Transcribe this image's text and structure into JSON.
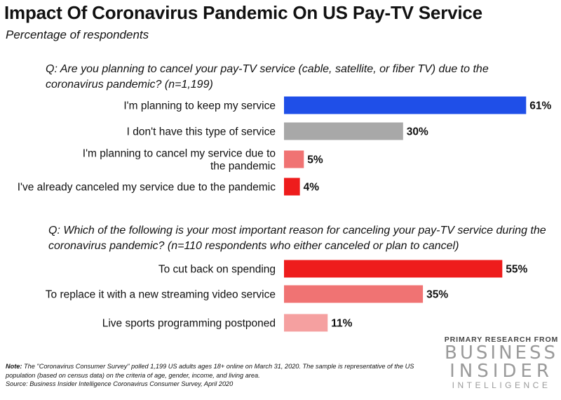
{
  "chart_data": {
    "title": "Impact Of Coronavirus Pandemic On US Pay-TV Service",
    "subtitle": "Percentage of respondents",
    "type": "bar",
    "orientation": "horizontal",
    "panels": [
      {
        "question": "Q: Are you planning to cancel your pay-TV service (cable, satellite, or fiber TV) due to the coronavirus pandemic? (n=1,199)",
        "categories": [
          "I'm planning to keep my service",
          "I don't have this type of service",
          "I'm planning to cancel my service due to the pandemic",
          "I've already canceled my service due to the pandemic"
        ],
        "values": [
          61,
          30,
          5,
          4
        ],
        "value_labels": [
          "61%",
          "30%",
          "5%",
          "4%"
        ],
        "colors": [
          "#1f4fe8",
          "#a8a8a8",
          "#f07373",
          "#ee1c1c"
        ]
      },
      {
        "question": "Q: Which of the following is your most important reason for canceling your pay-TV service during the coronavirus pandemic? (n=110 respondents who either canceled or plan to cancel)",
        "categories": [
          "To cut back on spending",
          "To replace it with a new streaming video service",
          "Live sports programming postponed"
        ],
        "values": [
          55,
          35,
          11
        ],
        "value_labels": [
          "55%",
          "35%",
          "11%"
        ],
        "colors": [
          "#ee1c1c",
          "#f07373",
          "#f5a0a0"
        ]
      }
    ],
    "xlim": [
      0,
      100
    ],
    "grid": false,
    "legend": "none"
  },
  "note": {
    "label": "Note:",
    "text": "The \"Coronavirus Consumer Survey\" polled 1,199 US adults ages 18+ online on March 31, 2020. The sample is representative of the US population (based on census data) on the criteria of age, gender, income, and living area.",
    "source": "Source: Business Insider Intelligence Coronavirus Consumer Survey, April 2020"
  },
  "brand": {
    "tagline": "PRIMARY RESEARCH FROM",
    "name_line1": "BUSINESS",
    "name_line2": "INSIDER",
    "name_line3": "INTELLIGENCE"
  }
}
